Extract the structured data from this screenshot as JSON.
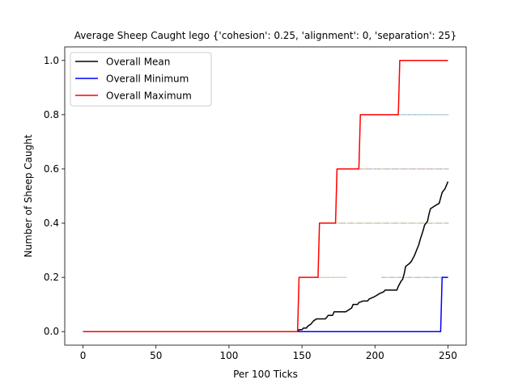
{
  "chart_data": {
    "type": "line",
    "title": "Average Sheep Caught lego {'cohesion': 0.25, 'alignment': 0, 'separation': 25}",
    "xlabel": "Per 100 Ticks",
    "ylabel": "Number of Sheep Caught",
    "xlim": [
      -12.5,
      262.5
    ],
    "ylim": [
      -0.05,
      1.05
    ],
    "xticks": [
      0,
      50,
      100,
      150,
      200,
      250
    ],
    "yticks": [
      0.0,
      0.2,
      0.4,
      0.6,
      0.8,
      1.0
    ],
    "xtick_labels": [
      "0",
      "50",
      "100",
      "150",
      "200",
      "250"
    ],
    "ytick_labels": [
      "0.0",
      "0.2",
      "0.4",
      "0.6",
      "0.8",
      "1.0"
    ],
    "grid": false,
    "legend_position": "upper-left",
    "series": [
      {
        "name": "Overall Mean",
        "color": "#000000",
        "points": [
          [
            0,
            0
          ],
          [
            147,
            0
          ],
          [
            148,
            0.007
          ],
          [
            150,
            0.007
          ],
          [
            151,
            0.013
          ],
          [
            153,
            0.013
          ],
          [
            154,
            0.02
          ],
          [
            156,
            0.027
          ],
          [
            158,
            0.04
          ],
          [
            160,
            0.047
          ],
          [
            166,
            0.047
          ],
          [
            167,
            0.053
          ],
          [
            168,
            0.06
          ],
          [
            171,
            0.06
          ],
          [
            172,
            0.073
          ],
          [
            180,
            0.073
          ],
          [
            182,
            0.08
          ],
          [
            184,
            0.087
          ],
          [
            185,
            0.1
          ],
          [
            188,
            0.1
          ],
          [
            189,
            0.107
          ],
          [
            192,
            0.113
          ],
          [
            195,
            0.113
          ],
          [
            196,
            0.12
          ],
          [
            199,
            0.127
          ],
          [
            201,
            0.133
          ],
          [
            203,
            0.14
          ],
          [
            206,
            0.147
          ],
          [
            207,
            0.153
          ],
          [
            215,
            0.153
          ],
          [
            216,
            0.167
          ],
          [
            218,
            0.187
          ],
          [
            219,
            0.193
          ],
          [
            220,
            0.213
          ],
          [
            221,
            0.24
          ],
          [
            224,
            0.253
          ],
          [
            225,
            0.26
          ],
          [
            227,
            0.28
          ],
          [
            229,
            0.307
          ],
          [
            230,
            0.32
          ],
          [
            231,
            0.34
          ],
          [
            233,
            0.373
          ],
          [
            234,
            0.393
          ],
          [
            236,
            0.407
          ],
          [
            237,
            0.433
          ],
          [
            238,
            0.453
          ],
          [
            240,
            0.46
          ],
          [
            242,
            0.467
          ],
          [
            244,
            0.473
          ],
          [
            245,
            0.493
          ],
          [
            246,
            0.513
          ],
          [
            248,
            0.527
          ],
          [
            249,
            0.54
          ],
          [
            250,
            0.553
          ]
        ]
      },
      {
        "name": "Overall Minimum",
        "color": "#0000ff",
        "points": [
          [
            0,
            0
          ],
          [
            245,
            0
          ],
          [
            246,
            0.2
          ],
          [
            250,
            0.2
          ]
        ]
      },
      {
        "name": "Overall Maximum",
        "color": "#ff0000",
        "points": [
          [
            0,
            0
          ],
          [
            147,
            0
          ],
          [
            148,
            0.2
          ],
          [
            161,
            0.2
          ],
          [
            162,
            0.4
          ],
          [
            173,
            0.4
          ],
          [
            174,
            0.6
          ],
          [
            189,
            0.6
          ],
          [
            190,
            0.8
          ],
          [
            216,
            0.8
          ],
          [
            217,
            1.0
          ],
          [
            250,
            1.0
          ]
        ]
      }
    ],
    "scatter_runs": [
      {
        "y": 0.2,
        "x_start": 160,
        "x_end": 180,
        "colors": [
          "#7f7f7f",
          "#bcbd22",
          "#17becf",
          "#ff7f0e"
        ]
      },
      {
        "y": 0.2,
        "x_start": 205,
        "x_end": 250,
        "colors": [
          "#1f77b4",
          "#8c564b",
          "#2ca02c",
          "#bcbd22",
          "#17becf",
          "#7f7f7f"
        ]
      },
      {
        "y": 0.4,
        "x_start": 173,
        "x_end": 250,
        "colors": [
          "#1f77b4",
          "#bcbd22",
          "#ff7f0e",
          "#7f7f7f",
          "#8c564b",
          "#2ca02c"
        ]
      },
      {
        "y": 0.6,
        "x_start": 188,
        "x_end": 250,
        "colors": [
          "#d62728",
          "#9467bd",
          "#8c564b",
          "#1f77b4",
          "#7f7f7f",
          "#bcbd22"
        ]
      },
      {
        "y": 0.8,
        "x_start": 215,
        "x_end": 250,
        "colors": [
          "#1f77b4",
          "#7f7f7f",
          "#9467bd",
          "#17becf"
        ]
      }
    ]
  }
}
